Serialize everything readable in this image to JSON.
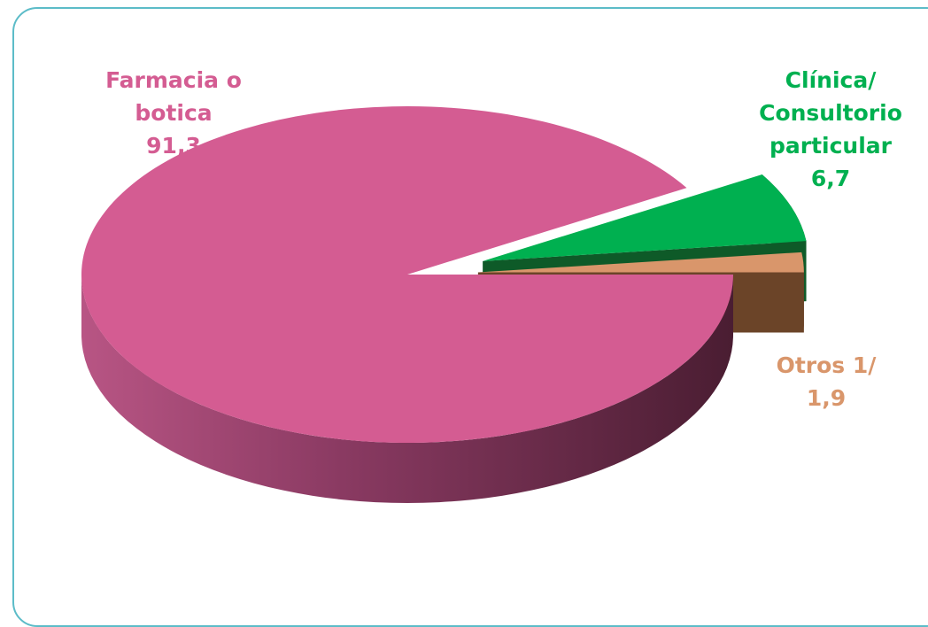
{
  "chart_data": {
    "type": "pie",
    "style": "3d-exploded",
    "slices": [
      {
        "label_lines": [
          "Farmacia o",
          "botica"
        ],
        "value_text": "91,3",
        "value": 91.3,
        "color": "#d45c92",
        "side_dark": "#5a2238",
        "side_light": "#b34f7c"
      },
      {
        "label_lines": [
          "Clínica/",
          "Consultorio",
          "particular"
        ],
        "value_text": "6,7",
        "value": 6.7,
        "color": "#00b050",
        "side_dark": "#0b4a22",
        "side_light": "#0e5a28"
      },
      {
        "label_lines": [
          "Otros 1/"
        ],
        "value_text": "1,9",
        "value": 1.9,
        "color": "#d9966b",
        "side_dark": "#5b3a22",
        "side_light": "#6b4428"
      }
    ],
    "label_colors": [
      "#d45c92",
      "#00b050",
      "#d9966b"
    ],
    "frame_border_color": "#5cbcc8"
  }
}
